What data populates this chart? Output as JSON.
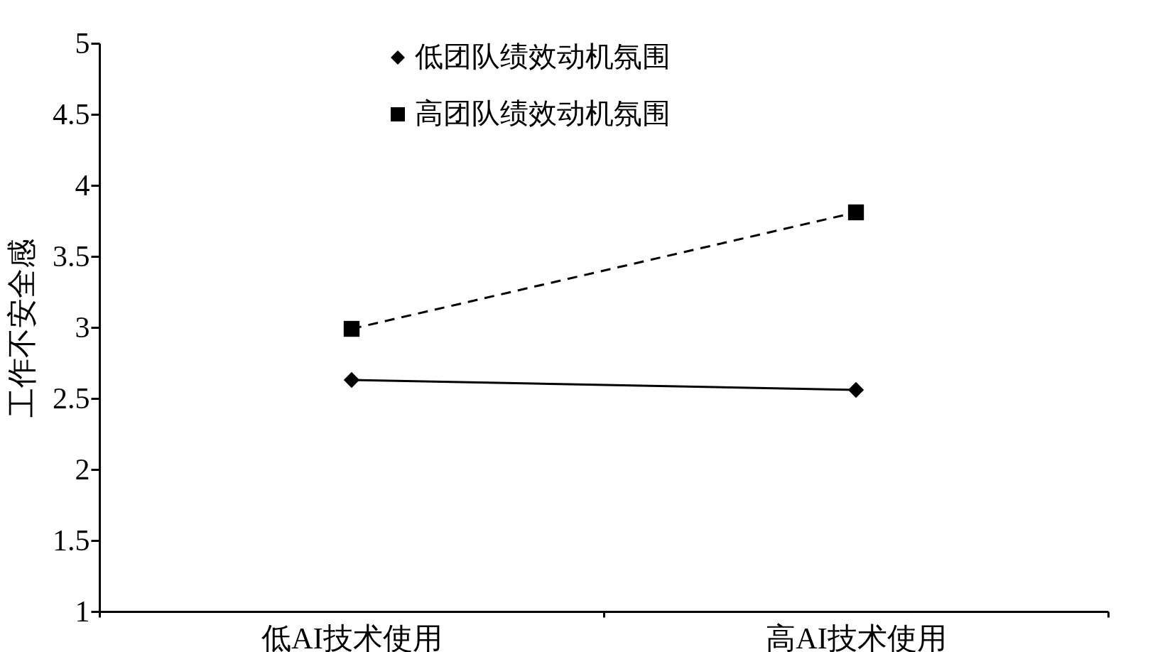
{
  "chart_data": {
    "type": "line",
    "ylabel": "工作不安全感",
    "categories": [
      "低AI技术使用",
      "高AI技术使用"
    ],
    "series": [
      {
        "name": "低团队绩效动机氛围",
        "color": "#000000",
        "values": [
          2.63,
          2.56
        ],
        "marker": "diamond",
        "line_style": "solid"
      },
      {
        "name": "高团队绩效动机氛围",
        "color": "#000000",
        "values": [
          2.99,
          3.81
        ],
        "marker": "square",
        "line_style": "dashed"
      }
    ],
    "ylim": [
      1,
      5
    ],
    "yticks": [
      1,
      1.5,
      2,
      2.5,
      3,
      3.5,
      4,
      4.5,
      5
    ],
    "grid": false,
    "legend": "top"
  }
}
